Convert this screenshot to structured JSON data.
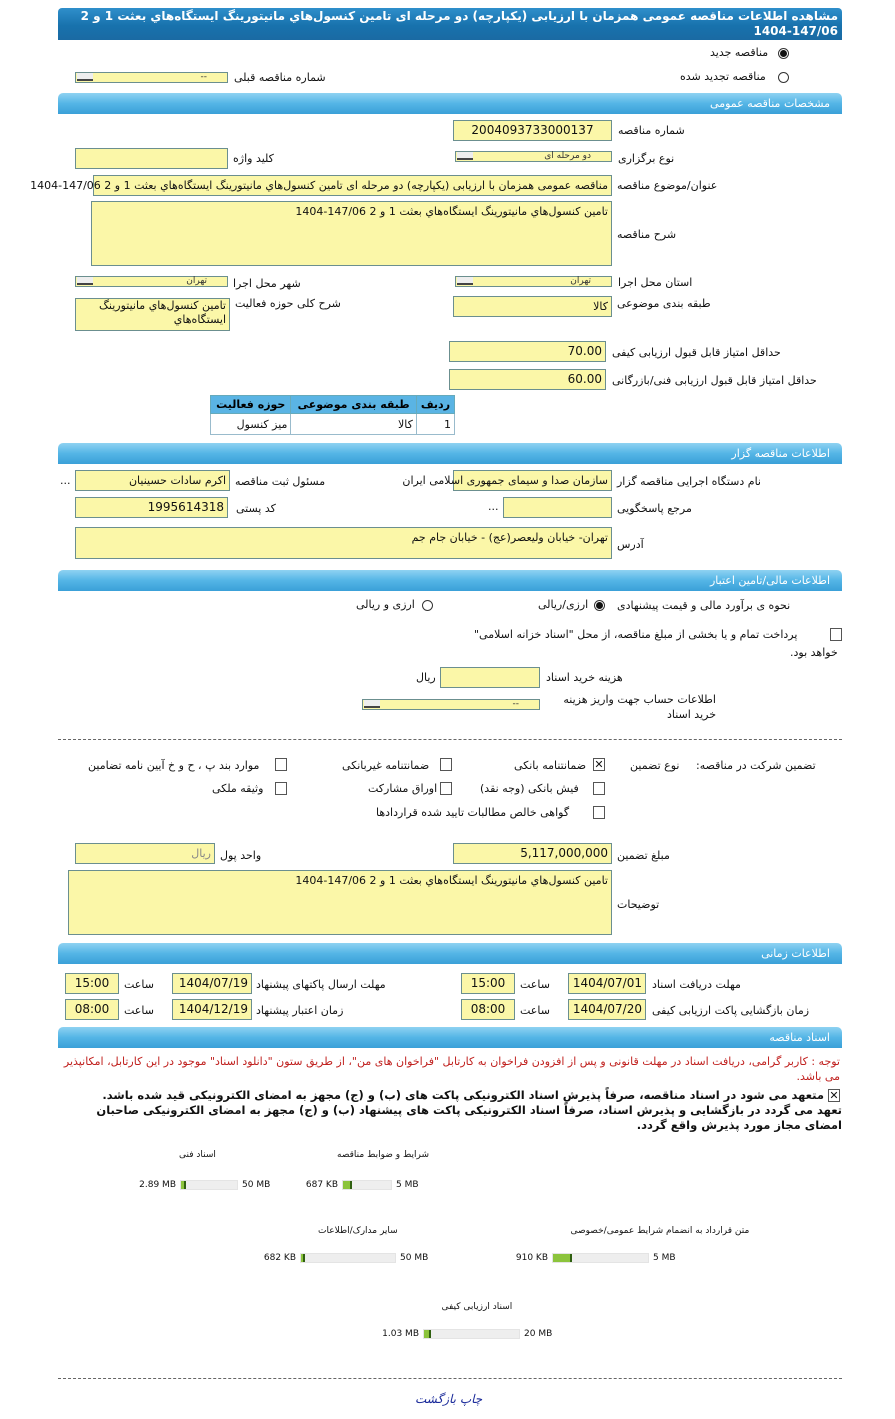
{
  "title": "مشاهده اطلاعات مناقصه عمومی همزمان با ارزیابی (یکپارچه) دو مرحله ای تامین کنسول‌هاي مانيتورينگ ايستگاه‌هاي بعثت 1 و 2 147/06-1404",
  "tender_type": {
    "new_label": "مناقصه جدید",
    "renewed_label": "مناقصه تجدید شده",
    "selected": "new",
    "prev_number_label": "شماره مناقصه قبلی",
    "prev_number_value": "--"
  },
  "sections": {
    "general": "مشخصات مناقصه عمومی",
    "organizer": "اطلاعات مناقصه گزار",
    "financial": "اطلاعات مالی/تامین اعتبار",
    "timing": "اطلاعات زمانی",
    "documents": "اسناد مناقصه"
  },
  "general": {
    "number_label": "شماره مناقصه",
    "number": "2004093733000137",
    "holding_type_label": "نوع برگزاری",
    "holding_type": "دو مرحله ای",
    "keyword_label": "کلید واژه",
    "keyword": "",
    "subject_label": "عنوان/موضوع مناقصه",
    "subject": "مناقصه عمومی همزمان با ارزیابی (یکپارچه) دو مرحله ای تامین کنسول‌هاي مانيتورينگ ايستگاه‌هاي بعثت 1 و 2 147/06-1404",
    "description_label": "شرح مناقصه",
    "description": "تامین کنسول‌هاي مانيتورينگ ايستگاه‌هاي بعثت 1 و 2 147/06-1404",
    "province_label": "استان محل اجرا",
    "province": "تهران",
    "city_label": "شهر محل اجرا",
    "city": "تهران",
    "category_label": "طبقه بندی موضوعی",
    "category": "کالا",
    "activity_label": "شرح کلی حوزه فعالیت",
    "activity": "تامین کنسول‌هاي مانيتورينگ ايستگاه‌هاي",
    "min_quality_label": "حداقل امتیاز قابل قبول ارزیابی کیفی",
    "min_quality": "70.00",
    "min_tech_label": "حداقل امتیاز قابل قبول ارزیابی فنی/بازرگانی",
    "min_tech": "60.00",
    "table": {
      "headers": [
        "ردیف",
        "طبقه بندی موضوعی",
        "حوزه فعالیت"
      ],
      "rows": [
        [
          "1",
          "کالا",
          "میز کنسول"
        ]
      ]
    }
  },
  "organizer": {
    "org_label": "نام دستگاه اجرایی مناقصه گزار",
    "org": "سازمان صدا و سیمای جمهوری اسلامی ایران",
    "registrar_label": "مسئول ثبت مناقصه",
    "registrar": "اکرم سادات حسینیان",
    "more": "...",
    "reference_label": "مرجع پاسخگویی",
    "reference": "",
    "postal_label": "کد پستی",
    "postal": "1995614318",
    "address_label": "آدرس",
    "address": "تهران- خیابان ولیعصر(عج) - خیابان جام جم"
  },
  "financial": {
    "estimate_label": "نحوه ی برآورد مالی و قیمت پیشنهادی",
    "opt_rial": "ارزی/ریالی",
    "opt_both": "ارزی و ریالی",
    "selected": "opt_rial",
    "treasury_text": "پرداخت تمام و یا بخشی از مبلغ مناقصه، از محل \"اسناد خزانه اسلامی\"",
    "treasury_text2": "خواهد بود.",
    "treasury_checked": false,
    "doc_cost_label": "هزینه خرید اسناد",
    "doc_cost": "",
    "doc_cost_unit": "ریال",
    "account_label": "اطلاعات حساب جهت واریز هزینه خرید اسناد",
    "account": "--",
    "guarantee_title": "تضمین شرکت در مناقصه:",
    "guarantee_type_label": "نوع تضمین",
    "guarantees": [
      {
        "label": "ضمانتنامه بانکی",
        "checked": true
      },
      {
        "label": "ضمانتنامه غیربانکی",
        "checked": false
      },
      {
        "label": "موارد بند پ ، ح و خ آیین نامه تضامین",
        "checked": false
      },
      {
        "label": "فیش بانکی (وجه نقد)",
        "checked": false
      },
      {
        "label": "اوراق مشارکت",
        "checked": false
      },
      {
        "label": "وثیقه ملکی",
        "checked": false
      },
      {
        "label": "گواهی خالص مطالبات تایید شده قراردادها",
        "checked": false
      }
    ],
    "amount_label": "مبلغ تضمین",
    "amount": "5,117,000,000",
    "currency_label": "واحد پول",
    "currency": "ریال",
    "notes_label": "توضیحات",
    "notes": "تامین کنسول‌هاي مانيتورينگ ايستگاه‌هاي بعثت 1 و 2 147/06-1404"
  },
  "timing": {
    "doc_deadline_label": "مهلت دریافت اسناد",
    "doc_deadline": "1404/07/01",
    "doc_deadline_time": "15:00",
    "submit_label": "مهلت ارسال پاکتهای پیشنهاد",
    "submit": "1404/07/19",
    "submit_time": "15:00",
    "opening_label": "زمان بازگشایی پاکت ارزیابی کیفی",
    "opening": "1404/07/20",
    "opening_time": "08:00",
    "validity_label": "زمان اعتبار پیشنهاد",
    "validity": "1404/12/19",
    "validity_time": "08:00",
    "time_label": "ساعت"
  },
  "documents": {
    "note": "توجه : کاربر گرامی، دریافت اسناد در مهلت قانونی و پس از افزودن فراخوان به کارتابل \"فراخوان های من\"، از طریق ستون \"دانلود اسناد\" موجود در این کارتابل، امکانپذیر می باشد.",
    "commit1": "متعهد می شود در اسناد مناقصه، صرفاً پذیرش اسناد الکترونیکی پاکت های (ب) و (ج) مجهز به امضای الکترونیکی قید شده باشد.",
    "commit2": "تعهد می گردد در بازگشایی و پذیرش اسناد، صرفاً اسناد الکترونیکی پاکت های پیشنهاد (ب) و (ج) مجهز به امضای الکترونیکی صاحبان امضای مجاز مورد پذیرش واقع گردد.",
    "commit_checked": true,
    "files": [
      {
        "title": "شرایط و ضوابط مناقصه",
        "size": "687 KB",
        "max": "5 MB",
        "fill_percent": 13
      },
      {
        "title": "اسناد فنی",
        "size": "2.89 MB",
        "max": "50 MB",
        "fill_percent": 6
      },
      {
        "title": "متن قرارداد به انضمام شرایط عمومی/خصوصی",
        "size": "910 KB",
        "max": "5 MB",
        "fill_percent": 18
      },
      {
        "title": "سایر مدارک/اطلاعات",
        "size": "682 KB",
        "max": "50 MB",
        "fill_percent": 1.3
      },
      {
        "title": "اسناد ارزیابی کیفی",
        "size": "1.03 MB",
        "max": "20 MB",
        "fill_percent": 5
      }
    ]
  },
  "footer": {
    "print": "چاپ",
    "back": "بازگشت"
  },
  "colors": {
    "title_bar": "#1872ad",
    "section_bar": "#54b5e6",
    "input_bg": "#fbf7a8",
    "note_red": "#c0201e",
    "progress": "#8cc43c",
    "link": "#1a2a9a"
  }
}
